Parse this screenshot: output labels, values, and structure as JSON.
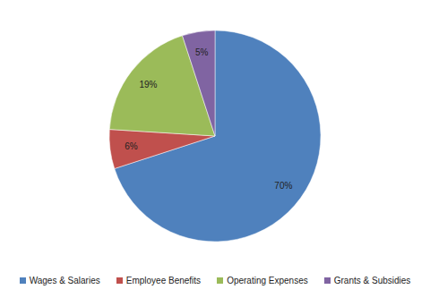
{
  "chart_data": {
    "type": "pie",
    "categories": [
      "Wages & Salaries",
      "Employee Benefits",
      "Operating Expenses",
      "Grants & Subsidies"
    ],
    "values": [
      70,
      6,
      19,
      5
    ],
    "value_labels": [
      "70%",
      "6%",
      "19%",
      "5%"
    ],
    "colors": [
      "#4f81bd",
      "#c0504d",
      "#9bbb59",
      "#8064a2"
    ],
    "data_labels": true,
    "legend": "bottom"
  }
}
